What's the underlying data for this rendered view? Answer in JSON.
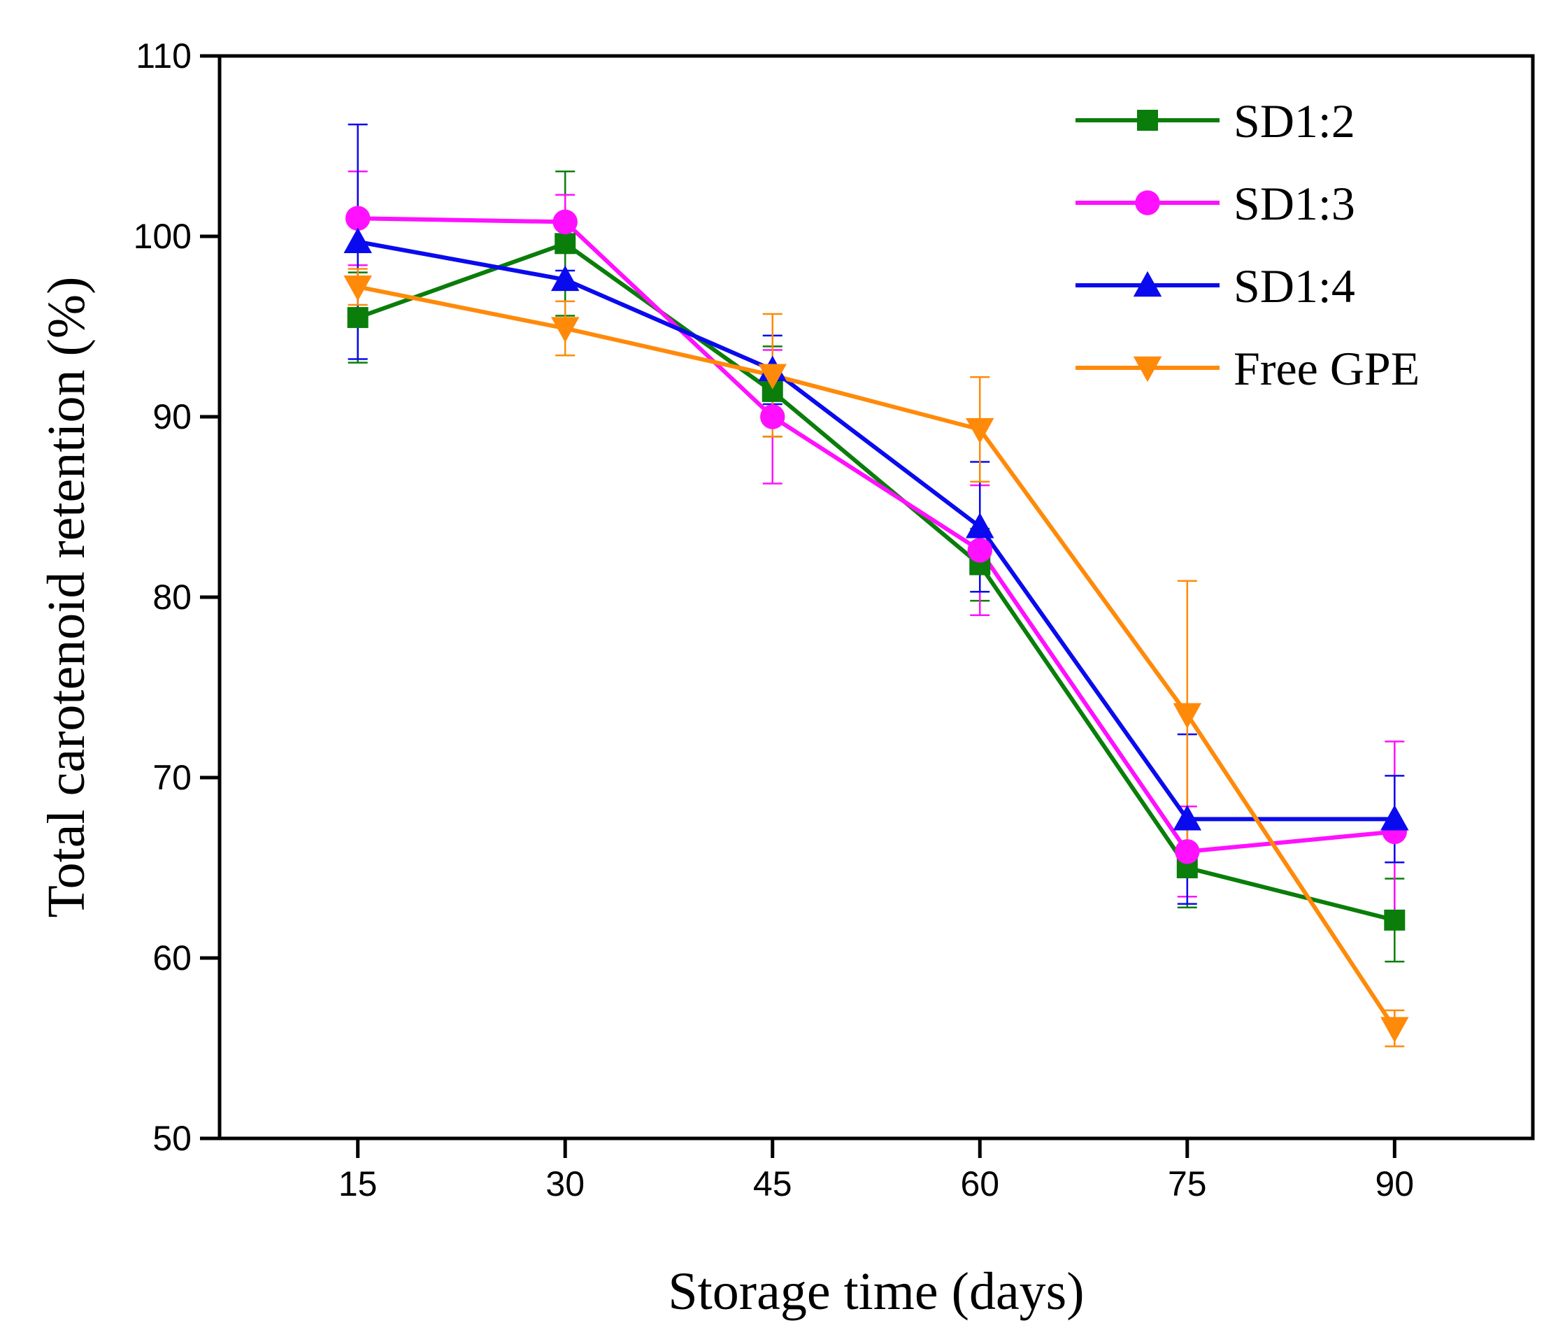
{
  "chart_data": {
    "type": "line",
    "title": "",
    "xlabel": "Storage time (days)",
    "ylabel": "Total carotenoid retention (%)",
    "x": [
      15,
      30,
      45,
      60,
      75,
      90
    ],
    "xticks": [
      "15",
      "30",
      "45",
      "60",
      "75",
      "90"
    ],
    "yticks": [
      "50",
      "60",
      "70",
      "80",
      "90",
      "100",
      "110"
    ],
    "xlim": [
      5,
      100
    ],
    "ylim": [
      50,
      110
    ],
    "grid": false,
    "legend_position": "top-right",
    "series": [
      {
        "name": "SD1:2",
        "color": "#0a7d0a",
        "marker": "square",
        "values": [
          95.5,
          99.6,
          91.4,
          81.8,
          65.0,
          62.1
        ],
        "errors": [
          2.5,
          4.0,
          2.5,
          2.0,
          2.2,
          2.3
        ]
      },
      {
        "name": "SD1:3",
        "color": "#ff10ff",
        "marker": "circle",
        "values": [
          101.0,
          100.8,
          90.0,
          82.6,
          65.9,
          67.0
        ],
        "errors": [
          2.6,
          1.5,
          3.7,
          3.6,
          2.5,
          5.0
        ]
      },
      {
        "name": "SD1:4",
        "color": "#0a0aee",
        "marker": "triangle-up",
        "values": [
          99.7,
          97.6,
          92.6,
          83.9,
          67.7,
          67.7
        ],
        "errors": [
          6.5,
          0.5,
          1.9,
          3.6,
          4.7,
          2.4
        ]
      },
      {
        "name": "Free GPE",
        "color": "#ff8a0a",
        "marker": "triangle-down",
        "values": [
          97.2,
          94.9,
          92.3,
          89.3,
          73.5,
          56.1
        ],
        "errors": [
          1.0,
          1.5,
          3.4,
          2.9,
          7.4,
          1.0
        ]
      }
    ]
  }
}
